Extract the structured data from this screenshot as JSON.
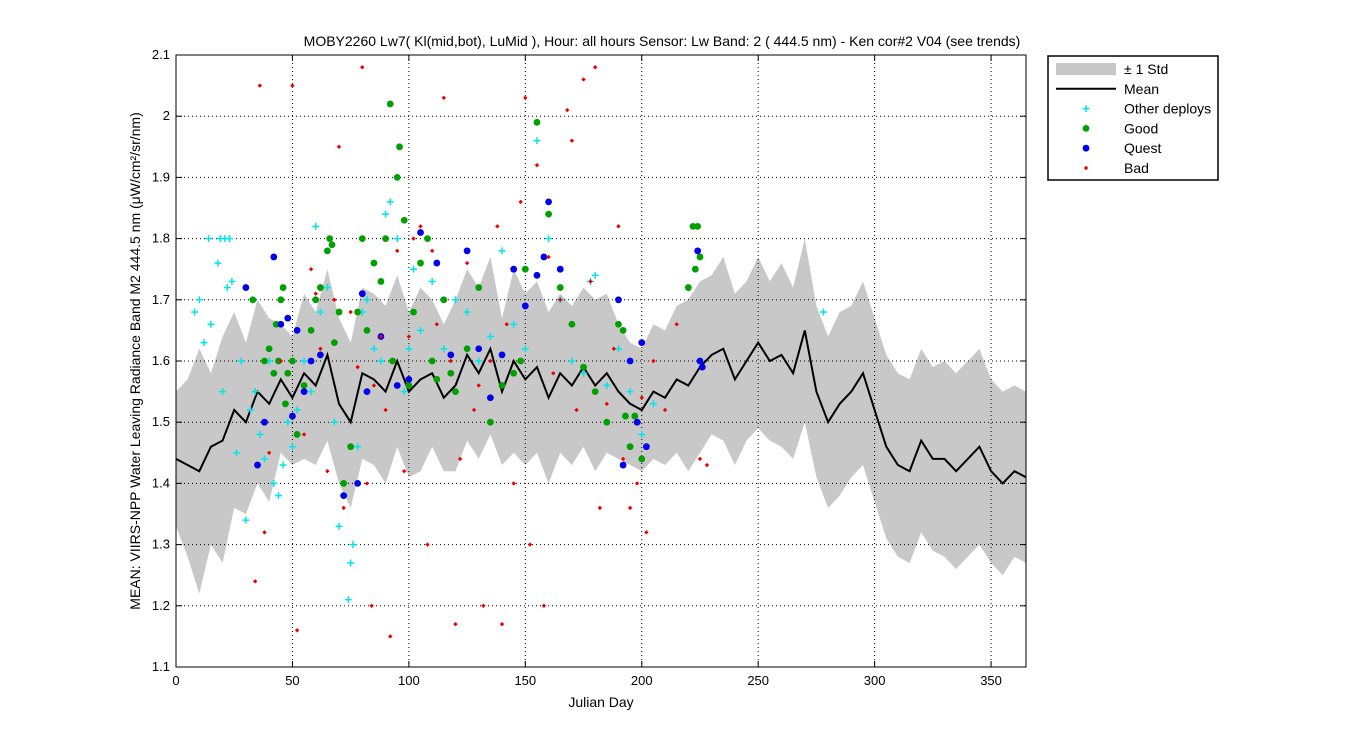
{
  "chart_data": {
    "type": "scatter",
    "title": "MOBY2260   Lw7( Kl(mid,bot), LuMid ),   Hour: all hours  Sensor: Lw Band: 2 ( 444.5 nm)  - Ken cor#2 V04 (see trends)",
    "xlabel": "Julian Day",
    "ylabel": "MEAN: VIIRS-NPP Water Leaving Radiance Band M2 444.5 nm (μW/cm²/sr/nm)",
    "xlim": [
      0,
      365
    ],
    "ylim": [
      1.1,
      2.1
    ],
    "x_ticks": [
      0,
      50,
      100,
      150,
      200,
      250,
      300,
      350
    ],
    "y_ticks": [
      1.1,
      1.2,
      1.3,
      1.4,
      1.5,
      1.6,
      1.7,
      1.8,
      1.9,
      2.0,
      2.1
    ],
    "x_tick_labels": [
      "0",
      "50",
      "100",
      "150",
      "200",
      "250",
      "300",
      "350"
    ],
    "y_tick_labels": [
      "1.1",
      "1.2",
      "1.3",
      "1.4",
      "1.5",
      "1.6",
      "1.7",
      "1.8",
      "1.9",
      "2",
      "2.1"
    ],
    "grid": true,
    "legend_position": "outside-top-right",
    "legend": [
      {
        "label": "± 1 Std",
        "kind": "band",
        "color": "#c8c8c8"
      },
      {
        "label": "Mean",
        "kind": "line",
        "color": "#000000"
      },
      {
        "label": "Other deploys",
        "kind": "plus",
        "color": "#00e5ee"
      },
      {
        "label": "Good",
        "kind": "dot",
        "color": "#00a000"
      },
      {
        "label": "Quest",
        "kind": "dot",
        "color": "#0000ee"
      },
      {
        "label": "Bad",
        "kind": "diamond",
        "color": "#ee0000"
      }
    ],
    "series": [
      {
        "name": "Mean",
        "kind": "line",
        "color": "#000000",
        "x": [
          0,
          5,
          10,
          15,
          20,
          25,
          30,
          35,
          40,
          45,
          50,
          55,
          60,
          65,
          70,
          75,
          80,
          85,
          90,
          95,
          100,
          105,
          110,
          115,
          120,
          125,
          130,
          135,
          140,
          145,
          150,
          155,
          160,
          165,
          170,
          175,
          180,
          185,
          190,
          195,
          200,
          205,
          210,
          215,
          220,
          225,
          230,
          235,
          240,
          245,
          250,
          255,
          260,
          265,
          270,
          275,
          280,
          285,
          290,
          295,
          300,
          305,
          310,
          315,
          320,
          325,
          330,
          335,
          340,
          345,
          350,
          355,
          360,
          365
        ],
        "y": [
          1.44,
          1.43,
          1.42,
          1.46,
          1.47,
          1.52,
          1.5,
          1.55,
          1.53,
          1.57,
          1.54,
          1.58,
          1.56,
          1.61,
          1.53,
          1.5,
          1.58,
          1.57,
          1.55,
          1.6,
          1.55,
          1.57,
          1.58,
          1.54,
          1.56,
          1.61,
          1.58,
          1.62,
          1.55,
          1.6,
          1.57,
          1.59,
          1.54,
          1.58,
          1.56,
          1.59,
          1.56,
          1.58,
          1.55,
          1.53,
          1.52,
          1.55,
          1.54,
          1.57,
          1.56,
          1.59,
          1.61,
          1.62,
          1.57,
          1.6,
          1.63,
          1.6,
          1.61,
          1.58,
          1.65,
          1.55,
          1.5,
          1.53,
          1.55,
          1.58,
          1.52,
          1.46,
          1.43,
          1.42,
          1.47,
          1.44,
          1.44,
          1.42,
          1.44,
          1.46,
          1.42,
          1.4,
          1.42,
          1.41
        ]
      },
      {
        "name": "± 1 Std",
        "kind": "band",
        "color": "#c8c8c8",
        "x": [
          0,
          5,
          10,
          15,
          20,
          25,
          30,
          35,
          40,
          45,
          50,
          55,
          60,
          65,
          70,
          75,
          80,
          85,
          90,
          95,
          100,
          105,
          110,
          115,
          120,
          125,
          130,
          135,
          140,
          145,
          150,
          155,
          160,
          165,
          170,
          175,
          180,
          185,
          190,
          195,
          200,
          205,
          210,
          215,
          220,
          225,
          230,
          235,
          240,
          245,
          250,
          255,
          260,
          265,
          270,
          275,
          280,
          285,
          290,
          295,
          300,
          305,
          310,
          315,
          320,
          325,
          330,
          335,
          340,
          345,
          350,
          355,
          360,
          365
        ],
        "upper": [
          1.55,
          1.57,
          1.62,
          1.58,
          1.64,
          1.68,
          1.63,
          1.7,
          1.67,
          1.66,
          1.64,
          1.71,
          1.68,
          1.75,
          1.67,
          1.63,
          1.72,
          1.71,
          1.69,
          1.74,
          1.68,
          1.72,
          1.7,
          1.66,
          1.7,
          1.75,
          1.72,
          1.77,
          1.67,
          1.75,
          1.71,
          1.73,
          1.68,
          1.71,
          1.69,
          1.72,
          1.7,
          1.71,
          1.66,
          1.63,
          1.62,
          1.66,
          1.65,
          1.69,
          1.7,
          1.73,
          1.74,
          1.77,
          1.71,
          1.73,
          1.77,
          1.73,
          1.76,
          1.72,
          1.8,
          1.69,
          1.64,
          1.68,
          1.69,
          1.73,
          1.67,
          1.61,
          1.58,
          1.57,
          1.62,
          1.59,
          1.6,
          1.58,
          1.6,
          1.62,
          1.57,
          1.55,
          1.56,
          1.55
        ],
        "lower": [
          1.33,
          1.28,
          1.22,
          1.3,
          1.27,
          1.36,
          1.35,
          1.4,
          1.37,
          1.45,
          1.43,
          1.44,
          1.43,
          1.47,
          1.4,
          1.36,
          1.44,
          1.43,
          1.4,
          1.46,
          1.41,
          1.42,
          1.46,
          1.42,
          1.42,
          1.47,
          1.44,
          1.48,
          1.43,
          1.45,
          1.43,
          1.45,
          1.4,
          1.45,
          1.43,
          1.46,
          1.42,
          1.45,
          1.44,
          1.43,
          1.42,
          1.44,
          1.43,
          1.45,
          1.42,
          1.45,
          1.48,
          1.47,
          1.43,
          1.47,
          1.49,
          1.47,
          1.46,
          1.44,
          1.5,
          1.41,
          1.36,
          1.38,
          1.41,
          1.43,
          1.37,
          1.31,
          1.28,
          1.27,
          1.32,
          1.29,
          1.28,
          1.26,
          1.28,
          1.3,
          1.27,
          1.25,
          1.28,
          1.27
        ]
      },
      {
        "name": "Other deploys",
        "kind": "plus",
        "color": "#00e5ee",
        "x": [
          8,
          10,
          12,
          14,
          15,
          18,
          19,
          20,
          21,
          22,
          23,
          24,
          26,
          28,
          30,
          32,
          34,
          36,
          38,
          40,
          42,
          44,
          46,
          48,
          50,
          52,
          55,
          58,
          60,
          62,
          65,
          68,
          70,
          72,
          74,
          75,
          76,
          78,
          80,
          82,
          85,
          88,
          90,
          92,
          95,
          98,
          100,
          102,
          105,
          110,
          115,
          120,
          125,
          130,
          135,
          140,
          145,
          150,
          155,
          160,
          165,
          170,
          175,
          178,
          180,
          185,
          190,
          195,
          200,
          205,
          278
        ],
        "y": [
          1.68,
          1.7,
          1.63,
          1.8,
          1.66,
          1.76,
          1.8,
          1.55,
          1.8,
          1.72,
          1.8,
          1.73,
          1.45,
          1.6,
          1.34,
          1.52,
          1.55,
          1.48,
          1.44,
          1.6,
          1.4,
          1.38,
          1.43,
          1.5,
          1.46,
          1.52,
          1.6,
          1.55,
          1.82,
          1.68,
          1.72,
          1.5,
          1.33,
          1.38,
          1.21,
          1.27,
          1.3,
          1.46,
          1.68,
          1.7,
          1.62,
          1.6,
          1.84,
          1.86,
          1.8,
          1.55,
          1.62,
          1.75,
          1.65,
          1.73,
          1.62,
          1.7,
          1.68,
          1.6,
          1.64,
          1.78,
          1.66,
          1.62,
          1.96,
          1.8,
          1.7,
          1.6,
          1.58,
          1.73,
          1.74,
          1.56,
          1.62,
          1.55,
          1.48,
          1.53,
          1.68
        ]
      },
      {
        "name": "Good",
        "kind": "dot",
        "color": "#00a000",
        "x": [
          33,
          38,
          40,
          42,
          43,
          44,
          45,
          46,
          47,
          48,
          50,
          52,
          55,
          58,
          60,
          62,
          65,
          66,
          67,
          68,
          70,
          72,
          75,
          78,
          80,
          82,
          85,
          88,
          90,
          92,
          93,
          95,
          96,
          98,
          100,
          102,
          105,
          108,
          110,
          112,
          115,
          118,
          120,
          125,
          130,
          135,
          140,
          145,
          148,
          150,
          155,
          160,
          165,
          170,
          175,
          180,
          185,
          190,
          192,
          193,
          195,
          197,
          200,
          220,
          222,
          223,
          224,
          225
        ],
        "y": [
          1.7,
          1.6,
          1.62,
          1.58,
          1.66,
          1.6,
          1.7,
          1.72,
          1.53,
          1.58,
          1.6,
          1.48,
          1.56,
          1.65,
          1.7,
          1.72,
          1.78,
          1.8,
          1.79,
          1.63,
          1.68,
          1.4,
          1.46,
          1.68,
          1.8,
          1.65,
          1.76,
          1.73,
          1.8,
          2.02,
          1.6,
          1.9,
          1.95,
          1.83,
          1.56,
          1.68,
          1.76,
          1.8,
          1.6,
          1.57,
          1.7,
          1.58,
          1.55,
          1.62,
          1.72,
          1.5,
          1.56,
          1.58,
          1.6,
          1.75,
          1.99,
          1.84,
          1.72,
          1.66,
          1.59,
          1.55,
          1.5,
          1.66,
          1.65,
          1.51,
          1.46,
          1.51,
          1.44,
          1.72,
          1.82,
          1.75,
          1.82,
          1.77
        ]
      },
      {
        "name": "Quest",
        "kind": "dot",
        "color": "#0000ee",
        "x": [
          30,
          35,
          38,
          42,
          45,
          48,
          50,
          52,
          55,
          58,
          62,
          72,
          78,
          80,
          82,
          88,
          95,
          100,
          105,
          112,
          118,
          125,
          130,
          135,
          140,
          145,
          150,
          155,
          158,
          160,
          165,
          190,
          192,
          195,
          198,
          200,
          202,
          224,
          225,
          226
        ],
        "y": [
          1.72,
          1.43,
          1.5,
          1.77,
          1.66,
          1.67,
          1.51,
          1.65,
          1.55,
          1.6,
          1.61,
          1.38,
          1.4,
          1.71,
          1.55,
          1.64,
          1.56,
          1.57,
          1.81,
          1.76,
          1.61,
          1.78,
          1.62,
          1.54,
          1.61,
          1.75,
          1.69,
          1.74,
          1.77,
          1.86,
          1.75,
          1.7,
          1.43,
          1.6,
          1.5,
          1.63,
          1.46,
          1.78,
          1.6,
          1.59
        ]
      },
      {
        "name": "Bad",
        "kind": "diamond",
        "color": "#ee0000",
        "x": [
          34,
          36,
          38,
          40,
          45,
          50,
          52,
          55,
          58,
          60,
          62,
          65,
          68,
          70,
          72,
          75,
          78,
          80,
          82,
          84,
          85,
          88,
          90,
          92,
          95,
          98,
          100,
          102,
          105,
          108,
          110,
          112,
          115,
          118,
          120,
          122,
          125,
          128,
          130,
          132,
          135,
          138,
          140,
          142,
          145,
          148,
          150,
          152,
          155,
          158,
          160,
          162,
          165,
          168,
          170,
          172,
          175,
          178,
          180,
          182,
          185,
          188,
          190,
          192,
          195,
          198,
          200,
          202,
          205,
          210,
          215,
          225,
          228
        ],
        "y": [
          1.24,
          2.05,
          1.32,
          1.45,
          1.6,
          2.05,
          1.16,
          1.48,
          1.75,
          1.71,
          1.62,
          1.42,
          1.7,
          1.95,
          1.36,
          1.68,
          1.59,
          2.08,
          1.4,
          1.2,
          1.56,
          1.64,
          1.52,
          1.15,
          1.78,
          1.42,
          1.64,
          1.8,
          1.82,
          1.3,
          1.78,
          1.66,
          2.03,
          1.6,
          1.17,
          1.44,
          1.76,
          1.52,
          1.56,
          1.2,
          1.6,
          1.82,
          1.17,
          1.66,
          1.4,
          1.86,
          2.03,
          1.3,
          1.92,
          1.2,
          1.77,
          1.58,
          1.7,
          2.01,
          1.96,
          1.52,
          2.06,
          1.73,
          2.08,
          1.36,
          1.53,
          1.62,
          1.82,
          1.44,
          1.36,
          1.4,
          1.54,
          1.32,
          1.6,
          1.52,
          1.66,
          1.44,
          1.43
        ]
      }
    ]
  }
}
